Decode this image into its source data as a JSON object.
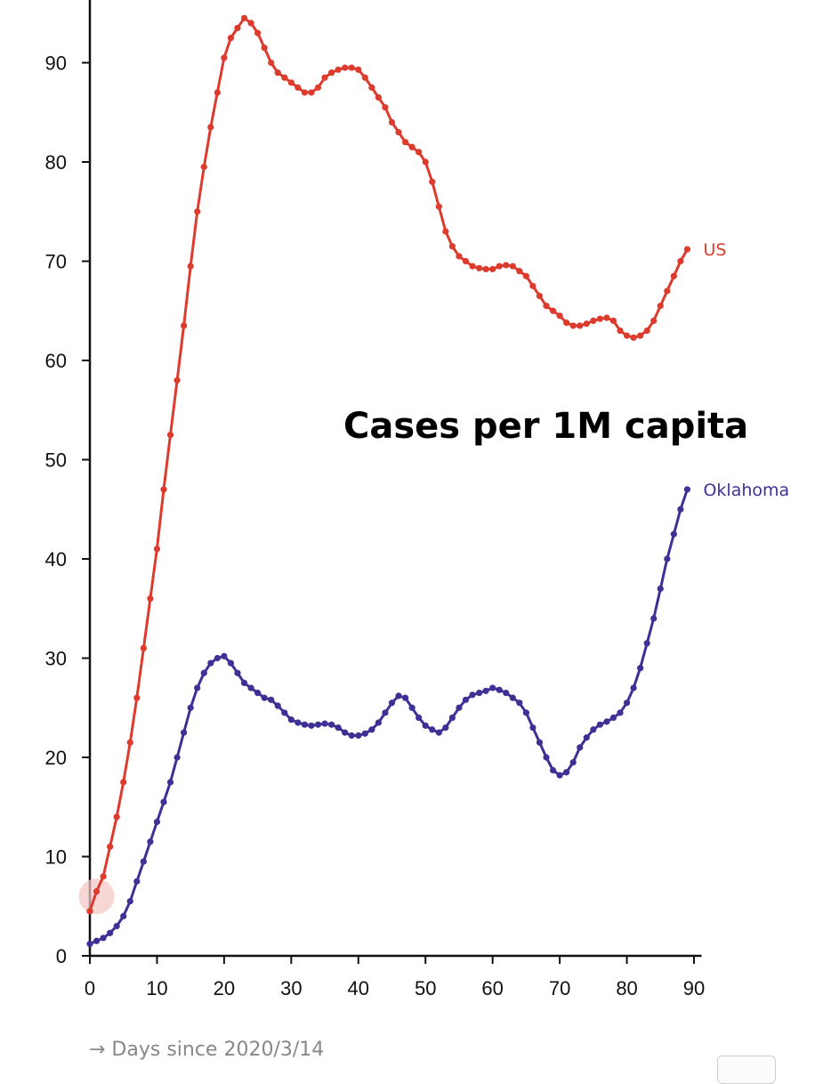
{
  "chart_data": {
    "type": "line",
    "title": "Cases per 1M capita",
    "xlabel": "→ Days since 2020/3/14",
    "ylabel": "",
    "xlim": [
      0,
      91
    ],
    "ylim": [
      0,
      100
    ],
    "x_ticks": [
      0,
      10,
      20,
      30,
      40,
      50,
      60,
      70,
      80,
      90
    ],
    "y_ticks": [
      0,
      10,
      20,
      30,
      40,
      50,
      60,
      70,
      80,
      90
    ],
    "grid": false,
    "legend": "inline labels at line ends",
    "highlight": {
      "x": 1,
      "y": 6,
      "color": "#f3c4c4"
    },
    "series": [
      {
        "name": "US",
        "color": "#dc3b2e",
        "points": [
          [
            0,
            4.5
          ],
          [
            1,
            6.5
          ],
          [
            2,
            8
          ],
          [
            3,
            11
          ],
          [
            4,
            14
          ],
          [
            5,
            17.5
          ],
          [
            6,
            21.5
          ],
          [
            7,
            26
          ],
          [
            8,
            31
          ],
          [
            9,
            36
          ],
          [
            10,
            41
          ],
          [
            11,
            47
          ],
          [
            12,
            52.5
          ],
          [
            13,
            58
          ],
          [
            14,
            63.5
          ],
          [
            15,
            69.5
          ],
          [
            16,
            75
          ],
          [
            17,
            79.5
          ],
          [
            18,
            83.5
          ],
          [
            19,
            87
          ],
          [
            20,
            90.5
          ],
          [
            21,
            92.5
          ],
          [
            22,
            93.5
          ],
          [
            23,
            94.5
          ],
          [
            24,
            94
          ],
          [
            25,
            93
          ],
          [
            26,
            91.5
          ],
          [
            27,
            90
          ],
          [
            28,
            89
          ],
          [
            29,
            88.5
          ],
          [
            30,
            88
          ],
          [
            31,
            87.5
          ],
          [
            32,
            87
          ],
          [
            33,
            87
          ],
          [
            34,
            87.5
          ],
          [
            35,
            88.5
          ],
          [
            36,
            89
          ],
          [
            37,
            89.3
          ],
          [
            38,
            89.5
          ],
          [
            39,
            89.5
          ],
          [
            40,
            89.3
          ],
          [
            41,
            88.5
          ],
          [
            42,
            87.5
          ],
          [
            43,
            86.5
          ],
          [
            44,
            85.5
          ],
          [
            45,
            84
          ],
          [
            46,
            83
          ],
          [
            47,
            82
          ],
          [
            48,
            81.5
          ],
          [
            49,
            81
          ],
          [
            50,
            80
          ],
          [
            51,
            78
          ],
          [
            52,
            75.5
          ],
          [
            53,
            73
          ],
          [
            54,
            71.5
          ],
          [
            55,
            70.5
          ],
          [
            56,
            70
          ],
          [
            57,
            69.5
          ],
          [
            58,
            69.3
          ],
          [
            59,
            69.2
          ],
          [
            60,
            69.2
          ],
          [
            61,
            69.5
          ],
          [
            62,
            69.6
          ],
          [
            63,
            69.5
          ],
          [
            64,
            69
          ],
          [
            65,
            68.5
          ],
          [
            66,
            67.5
          ],
          [
            67,
            66.5
          ],
          [
            68,
            65.5
          ],
          [
            69,
            65
          ],
          [
            70,
            64.5
          ],
          [
            71,
            63.8
          ],
          [
            72,
            63.5
          ],
          [
            73,
            63.5
          ],
          [
            74,
            63.7
          ],
          [
            75,
            64
          ],
          [
            76,
            64.2
          ],
          [
            77,
            64.3
          ],
          [
            78,
            64
          ],
          [
            79,
            63
          ],
          [
            80,
            62.5
          ],
          [
            81,
            62.3
          ],
          [
            82,
            62.5
          ],
          [
            83,
            63
          ],
          [
            84,
            64
          ],
          [
            85,
            65.5
          ],
          [
            86,
            67
          ],
          [
            87,
            68.5
          ],
          [
            88,
            70
          ],
          [
            89,
            71.2
          ]
        ]
      },
      {
        "name": "Oklahoma",
        "color": "#3d3195",
        "points": [
          [
            0,
            1.2
          ],
          [
            1,
            1.5
          ],
          [
            2,
            1.8
          ],
          [
            3,
            2.3
          ],
          [
            4,
            3
          ],
          [
            5,
            4
          ],
          [
            6,
            5.5
          ],
          [
            7,
            7.5
          ],
          [
            8,
            9.5
          ],
          [
            9,
            11.5
          ],
          [
            10,
            13.5
          ],
          [
            11,
            15.5
          ],
          [
            12,
            17.5
          ],
          [
            13,
            20
          ],
          [
            14,
            22.5
          ],
          [
            15,
            25
          ],
          [
            16,
            27
          ],
          [
            17,
            28.5
          ],
          [
            18,
            29.5
          ],
          [
            19,
            30
          ],
          [
            20,
            30.2
          ],
          [
            21,
            29.5
          ],
          [
            22,
            28.5
          ],
          [
            23,
            27.5
          ],
          [
            24,
            27
          ],
          [
            25,
            26.5
          ],
          [
            26,
            26
          ],
          [
            27,
            25.8
          ],
          [
            28,
            25.2
          ],
          [
            29,
            24.5
          ],
          [
            30,
            23.8
          ],
          [
            31,
            23.5
          ],
          [
            32,
            23.3
          ],
          [
            33,
            23.2
          ],
          [
            34,
            23.3
          ],
          [
            35,
            23.4
          ],
          [
            36,
            23.3
          ],
          [
            37,
            23
          ],
          [
            38,
            22.5
          ],
          [
            39,
            22.2
          ],
          [
            40,
            22.2
          ],
          [
            41,
            22.4
          ],
          [
            42,
            22.8
          ],
          [
            43,
            23.5
          ],
          [
            44,
            24.5
          ],
          [
            45,
            25.5
          ],
          [
            46,
            26.2
          ],
          [
            47,
            26
          ],
          [
            48,
            25
          ],
          [
            49,
            24
          ],
          [
            50,
            23.2
          ],
          [
            51,
            22.8
          ],
          [
            52,
            22.5
          ],
          [
            53,
            23
          ],
          [
            54,
            24
          ],
          [
            55,
            25
          ],
          [
            56,
            25.8
          ],
          [
            57,
            26.3
          ],
          [
            58,
            26.5
          ],
          [
            59,
            26.7
          ],
          [
            60,
            27
          ],
          [
            61,
            26.8
          ],
          [
            62,
            26.5
          ],
          [
            63,
            26
          ],
          [
            64,
            25.5
          ],
          [
            65,
            24.5
          ],
          [
            66,
            23
          ],
          [
            67,
            21.5
          ],
          [
            68,
            20
          ],
          [
            69,
            18.7
          ],
          [
            70,
            18.2
          ],
          [
            71,
            18.5
          ],
          [
            72,
            19.5
          ],
          [
            73,
            21
          ],
          [
            74,
            22
          ],
          [
            75,
            22.8
          ],
          [
            76,
            23.3
          ],
          [
            77,
            23.6
          ],
          [
            78,
            24
          ],
          [
            79,
            24.5
          ],
          [
            80,
            25.5
          ],
          [
            81,
            27
          ],
          [
            82,
            29
          ],
          [
            83,
            31.5
          ],
          [
            84,
            34
          ],
          [
            85,
            37
          ],
          [
            86,
            40
          ],
          [
            87,
            42.5
          ],
          [
            88,
            45
          ],
          [
            89,
            47
          ]
        ]
      }
    ]
  }
}
